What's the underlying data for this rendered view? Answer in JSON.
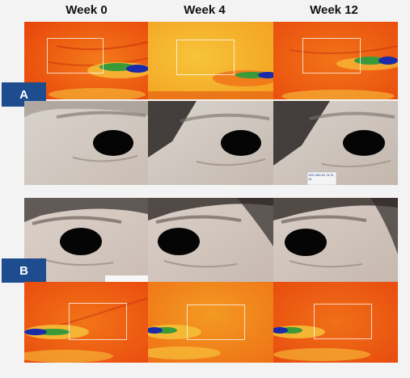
{
  "headers": {
    "week0": "Week 0",
    "week4": "Week 4",
    "week12": "Week 12"
  },
  "groups": {
    "a": {
      "label": "A"
    },
    "b": {
      "label": "B"
    }
  },
  "stickers": {
    "a_week12": "15G-456-81 01 B-14"
  },
  "colors": {
    "badge": "#1d4d8f",
    "heat_orange": "#f05a10",
    "heat_yellow": "#f5c12a",
    "heat_green": "#3a9a3a",
    "heat_blue": "#1a2aa8"
  }
}
